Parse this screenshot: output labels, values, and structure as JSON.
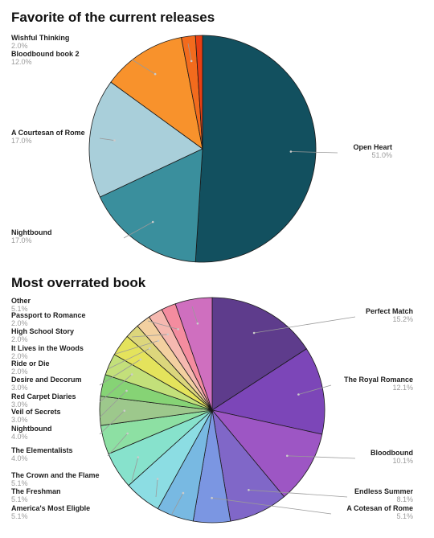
{
  "chart_data": [
    {
      "type": "pie",
      "title": "Favorite of the current releases",
      "slices": [
        {
          "label": "Open Heart",
          "value": 51.0,
          "pct_label": "51.0%",
          "color": "#12505f"
        },
        {
          "label": "Nightbound",
          "value": 17.0,
          "pct_label": "17.0%",
          "color": "#3a8f9d"
        },
        {
          "label": "A Courtesan of Rome",
          "value": 17.0,
          "pct_label": "17.0%",
          "color": "#a9cfda"
        },
        {
          "label": "Bloodbound book 2",
          "value": 12.0,
          "pct_label": "12.0%",
          "color": "#f8922c"
        },
        {
          "label": "Wishful Thinking",
          "value": 2.0,
          "pct_label": "2.0%",
          "color": "#f26b1d"
        },
        {
          "label": "",
          "value": 1.0,
          "pct_label": "",
          "color": "#e83f13"
        }
      ]
    },
    {
      "type": "pie",
      "title": "Most overrated book",
      "slices": [
        {
          "label": "Perfect Match",
          "value": 15.2,
          "pct_label": "15.2%",
          "color": "#5e3c8c"
        },
        {
          "label": "The Royal Romance",
          "value": 12.1,
          "pct_label": "12.1%",
          "color": "#7c46b8"
        },
        {
          "label": "Bloodbound",
          "value": 10.1,
          "pct_label": "10.1%",
          "color": "#9d56c4"
        },
        {
          "label": "Endless Summer",
          "value": 8.1,
          "pct_label": "8.1%",
          "color": "#8067c8"
        },
        {
          "label": "A Cotesan of Rome",
          "value": 5.1,
          "pct_label": "5.1%",
          "color": "#7b96e2"
        },
        {
          "label": "America's Most Eligble",
          "value": 5.1,
          "pct_label": "5.1%",
          "color": "#78b9e2"
        },
        {
          "label": "The Freshman",
          "value": 5.1,
          "pct_label": "5.1%",
          "color": "#8cdde3"
        },
        {
          "label": "The Crown and the Flame",
          "value": 5.1,
          "pct_label": "5.1%",
          "color": "#87e2cc"
        },
        {
          "label": "The Elementalists",
          "value": 4.0,
          "pct_label": "4.0%",
          "color": "#8de0a3"
        },
        {
          "label": "Nightbound",
          "value": 4.0,
          "pct_label": "4.0%",
          "color": "#9dc88c"
        },
        {
          "label": "Veil of Secrets",
          "value": 3.0,
          "pct_label": "3.0%",
          "color": "#86d375"
        },
        {
          "label": "Red Carpet Diaries",
          "value": 3.0,
          "pct_label": "3.0%",
          "color": "#c3e07a"
        },
        {
          "label": "Desire and Decorum",
          "value": 3.0,
          "pct_label": "3.0%",
          "color": "#e4e35c"
        },
        {
          "label": "Ride or Die",
          "value": 2.0,
          "pct_label": "2.0%",
          "color": "#dcd67c"
        },
        {
          "label": "It Lives in the Woods",
          "value": 2.0,
          "pct_label": "2.0%",
          "color": "#f3d0a0"
        },
        {
          "label": "High School Story",
          "value": 2.0,
          "pct_label": "2.0%",
          "color": "#f5b9b0"
        },
        {
          "label": "Passport to Romance",
          "value": 2.0,
          "pct_label": "2.0%",
          "color": "#f48c9f"
        },
        {
          "label": "Other",
          "value": 5.1,
          "pct_label": "5.1%",
          "color": "#cf6fbf"
        }
      ]
    }
  ]
}
